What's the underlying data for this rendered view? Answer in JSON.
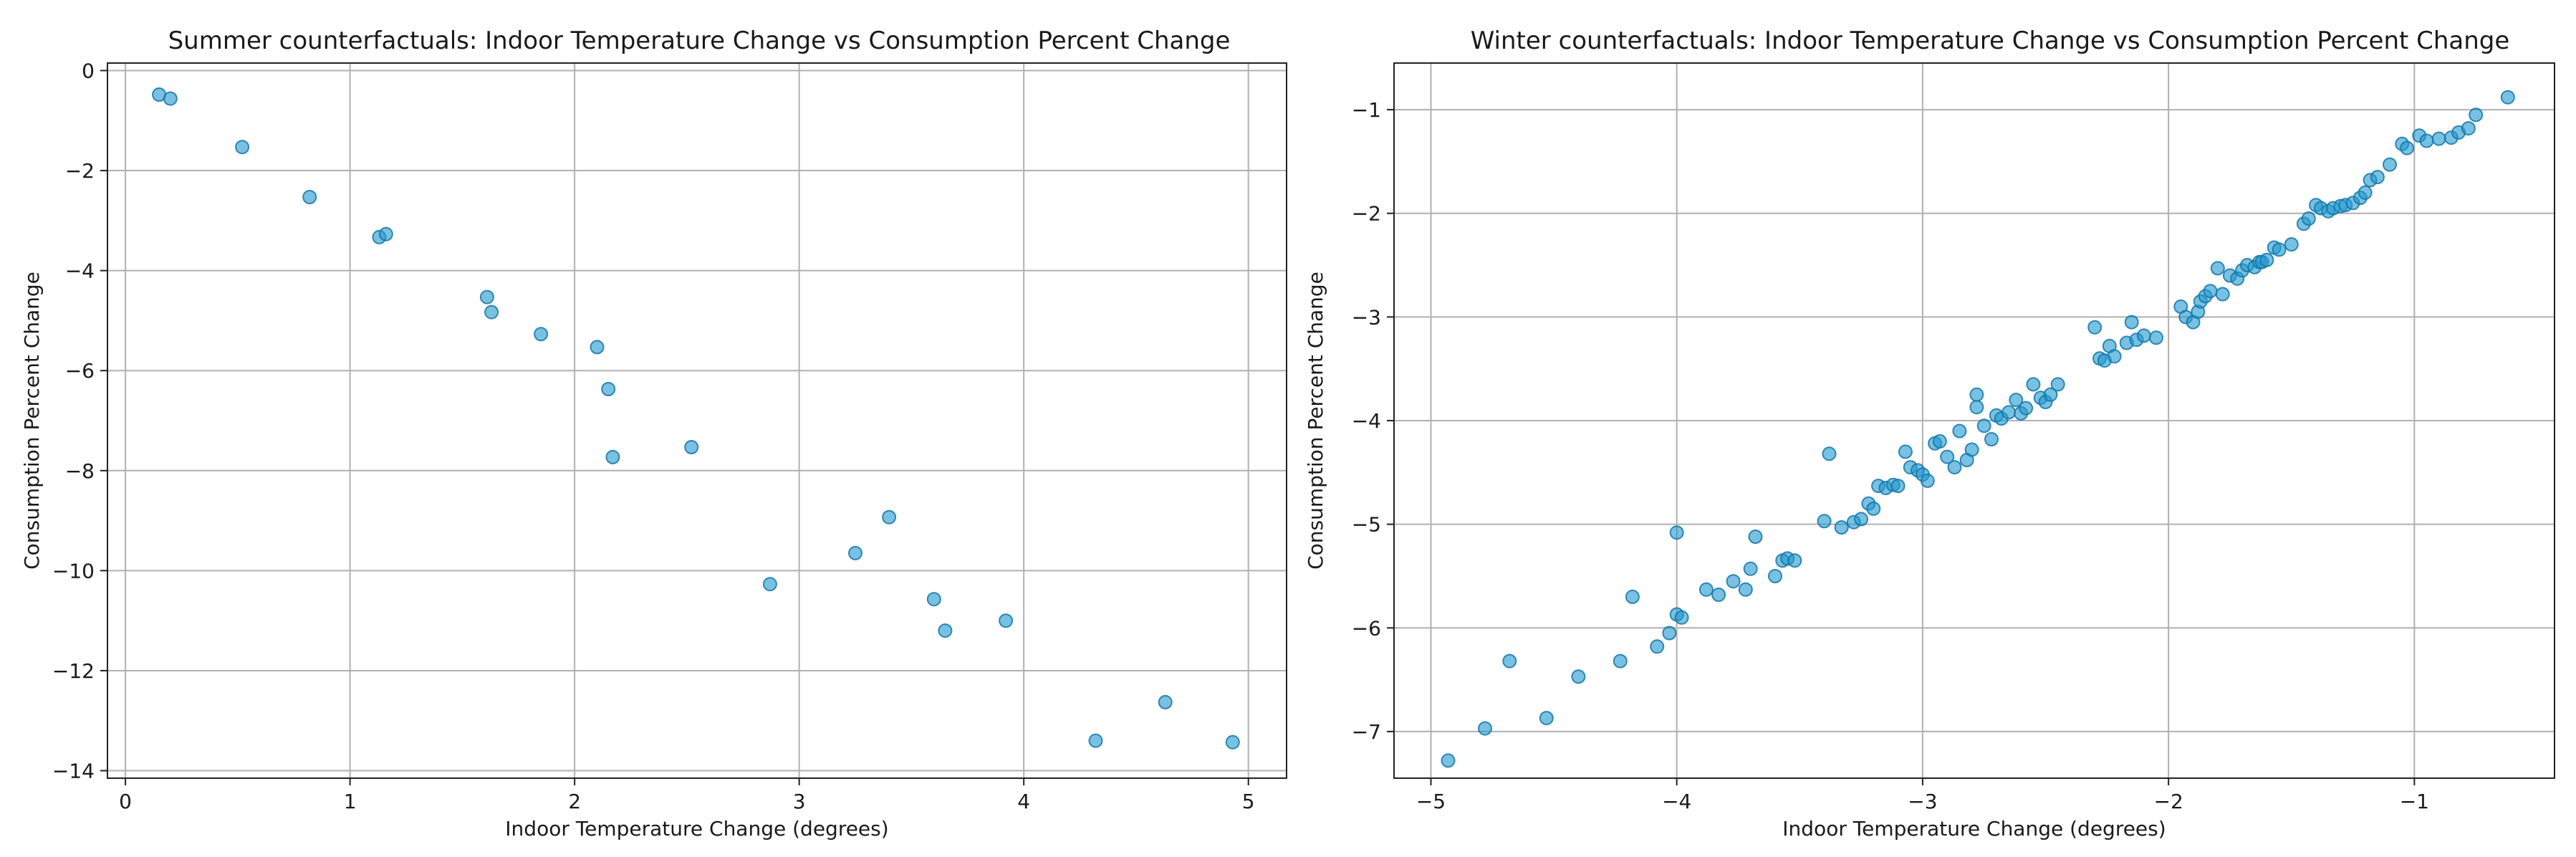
{
  "chart_data": [
    {
      "type": "scatter",
      "title": "Summer counterfactuals: Indoor Temperature Change vs Consumption Percent Change",
      "xlabel": "Indoor Temperature Change (degrees)",
      "ylabel": "Consumption Percent Change",
      "xlim": [
        -0.08,
        5.17
      ],
      "ylim": [
        -14.15,
        0.15
      ],
      "xticks": [
        0,
        1,
        2,
        3,
        4,
        5
      ],
      "yticks": [
        0,
        -2,
        -4,
        -6,
        -8,
        -10,
        -12,
        -14
      ],
      "xtick_labels": [
        "0",
        "1",
        "2",
        "3",
        "4",
        "5"
      ],
      "ytick_labels": [
        "0",
        "−2",
        "−4",
        "−6",
        "−8",
        "−10",
        "−12",
        "−14"
      ],
      "grid": true,
      "color": "#1f98cf",
      "edge_color": "#1477a8",
      "series": [
        {
          "name": "summer",
          "points": [
            [
              0.15,
              -0.48
            ],
            [
              0.2,
              -0.56
            ],
            [
              0.52,
              -1.53
            ],
            [
              0.82,
              -2.53
            ],
            [
              1.13,
              -3.33
            ],
            [
              1.16,
              -3.27
            ],
            [
              1.61,
              -4.53
            ],
            [
              1.63,
              -4.83
            ],
            [
              1.85,
              -5.27
            ],
            [
              2.1,
              -5.53
            ],
            [
              2.15,
              -6.37
            ],
            [
              2.17,
              -7.73
            ],
            [
              2.52,
              -7.53
            ],
            [
              2.87,
              -10.27
            ],
            [
              3.25,
              -9.65
            ],
            [
              3.4,
              -8.93
            ],
            [
              3.6,
              -10.57
            ],
            [
              3.65,
              -11.2
            ],
            [
              3.92,
              -11.0
            ],
            [
              4.32,
              -13.4
            ],
            [
              4.63,
              -12.63
            ],
            [
              4.93,
              -13.43
            ]
          ]
        }
      ]
    },
    {
      "type": "scatter",
      "title": "Winter counterfactuals: Indoor Temperature Change vs Consumption Percent Change",
      "xlabel": "Indoor Temperature Change (degrees)",
      "ylabel": "Consumption Percent Change",
      "xlim": [
        -5.15,
        -0.43
      ],
      "ylim": [
        -7.45,
        -0.55
      ],
      "xticks": [
        -5,
        -4,
        -3,
        -2,
        -1
      ],
      "yticks": [
        -1,
        -2,
        -3,
        -4,
        -5,
        -6,
        -7
      ],
      "xtick_labels": [
        "−5",
        "−4",
        "−3",
        "−2",
        "−1"
      ],
      "ytick_labels": [
        "−1",
        "−2",
        "−3",
        "−4",
        "−5",
        "−6",
        "−7"
      ],
      "grid": true,
      "color": "#1f98cf",
      "edge_color": "#1477a8",
      "series": [
        {
          "name": "winter",
          "points": [
            [
              -4.93,
              -7.28
            ],
            [
              -4.78,
              -6.97
            ],
            [
              -4.68,
              -6.32
            ],
            [
              -4.53,
              -6.87
            ],
            [
              -4.4,
              -6.47
            ],
            [
              -4.23,
              -6.32
            ],
            [
              -4.18,
              -5.7
            ],
            [
              -4.08,
              -6.18
            ],
            [
              -4.03,
              -6.05
            ],
            [
              -4.0,
              -5.87
            ],
            [
              -3.98,
              -5.9
            ],
            [
              -4.0,
              -5.08
            ],
            [
              -3.88,
              -5.63
            ],
            [
              -3.83,
              -5.68
            ],
            [
              -3.77,
              -5.55
            ],
            [
              -3.72,
              -5.63
            ],
            [
              -3.7,
              -5.43
            ],
            [
              -3.68,
              -5.12
            ],
            [
              -3.6,
              -5.5
            ],
            [
              -3.57,
              -5.35
            ],
            [
              -3.55,
              -5.33
            ],
            [
              -3.52,
              -5.35
            ],
            [
              -3.4,
              -4.97
            ],
            [
              -3.38,
              -4.32
            ],
            [
              -3.33,
              -5.03
            ],
            [
              -3.28,
              -4.98
            ],
            [
              -3.25,
              -4.95
            ],
            [
              -3.22,
              -4.8
            ],
            [
              -3.2,
              -4.85
            ],
            [
              -3.18,
              -4.63
            ],
            [
              -3.15,
              -4.65
            ],
            [
              -3.12,
              -4.62
            ],
            [
              -3.1,
              -4.63
            ],
            [
              -3.07,
              -4.3
            ],
            [
              -3.05,
              -4.45
            ],
            [
              -3.02,
              -4.48
            ],
            [
              -3.0,
              -4.52
            ],
            [
              -2.98,
              -4.58
            ],
            [
              -2.95,
              -4.22
            ],
            [
              -2.93,
              -4.2
            ],
            [
              -2.9,
              -4.35
            ],
            [
              -2.87,
              -4.45
            ],
            [
              -2.85,
              -4.1
            ],
            [
              -2.82,
              -4.38
            ],
            [
              -2.8,
              -4.28
            ],
            [
              -2.78,
              -3.87
            ],
            [
              -2.78,
              -3.75
            ],
            [
              -2.75,
              -4.05
            ],
            [
              -2.72,
              -4.18
            ],
            [
              -2.7,
              -3.95
            ],
            [
              -2.68,
              -3.98
            ],
            [
              -2.65,
              -3.92
            ],
            [
              -2.62,
              -3.8
            ],
            [
              -2.6,
              -3.93
            ],
            [
              -2.58,
              -3.88
            ],
            [
              -2.55,
              -3.65
            ],
            [
              -2.52,
              -3.78
            ],
            [
              -2.5,
              -3.82
            ],
            [
              -2.48,
              -3.75
            ],
            [
              -2.45,
              -3.65
            ],
            [
              -2.3,
              -3.1
            ],
            [
              -2.28,
              -3.4
            ],
            [
              -2.26,
              -3.42
            ],
            [
              -2.24,
              -3.28
            ],
            [
              -2.22,
              -3.38
            ],
            [
              -2.17,
              -3.25
            ],
            [
              -2.15,
              -3.05
            ],
            [
              -2.13,
              -3.22
            ],
            [
              -2.1,
              -3.18
            ],
            [
              -2.05,
              -3.2
            ],
            [
              -1.95,
              -2.9
            ],
            [
              -1.93,
              -3.0
            ],
            [
              -1.9,
              -3.05
            ],
            [
              -1.88,
              -2.95
            ],
            [
              -1.87,
              -2.85
            ],
            [
              -1.85,
              -2.8
            ],
            [
              -1.83,
              -2.75
            ],
            [
              -1.8,
              -2.53
            ],
            [
              -1.78,
              -2.78
            ],
            [
              -1.75,
              -2.6
            ],
            [
              -1.72,
              -2.63
            ],
            [
              -1.7,
              -2.55
            ],
            [
              -1.68,
              -2.5
            ],
            [
              -1.65,
              -2.52
            ],
            [
              -1.63,
              -2.47
            ],
            [
              -1.62,
              -2.47
            ],
            [
              -1.6,
              -2.45
            ],
            [
              -1.57,
              -2.33
            ],
            [
              -1.55,
              -2.35
            ],
            [
              -1.5,
              -2.3
            ],
            [
              -1.45,
              -2.1
            ],
            [
              -1.43,
              -2.05
            ],
            [
              -1.4,
              -1.92
            ],
            [
              -1.38,
              -1.95
            ],
            [
              -1.35,
              -1.98
            ],
            [
              -1.33,
              -1.95
            ],
            [
              -1.3,
              -1.93
            ],
            [
              -1.28,
              -1.92
            ],
            [
              -1.25,
              -1.9
            ],
            [
              -1.22,
              -1.85
            ],
            [
              -1.2,
              -1.8
            ],
            [
              -1.18,
              -1.68
            ],
            [
              -1.15,
              -1.65
            ],
            [
              -1.1,
              -1.53
            ],
            [
              -1.05,
              -1.33
            ],
            [
              -1.03,
              -1.37
            ],
            [
              -0.98,
              -1.25
            ],
            [
              -0.95,
              -1.3
            ],
            [
              -0.9,
              -1.28
            ],
            [
              -0.85,
              -1.27
            ],
            [
              -0.82,
              -1.22
            ],
            [
              -0.78,
              -1.18
            ],
            [
              -0.75,
              -1.05
            ],
            [
              -0.62,
              -0.88
            ]
          ]
        }
      ]
    }
  ]
}
